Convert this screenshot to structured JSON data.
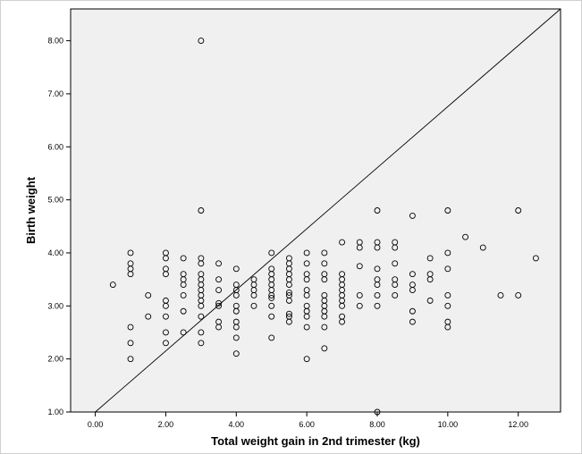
{
  "colors": {
    "plot_background": "#f0f0f0",
    "marker_stroke": "#000000",
    "reference_line": "#000000",
    "frame": "#d0d0d0"
  },
  "chart_data": {
    "type": "scatter",
    "title": "",
    "xlabel": "Total weight gain in 2nd trimester (kg)",
    "ylabel": "Birth weight",
    "xlim": [
      -0.7,
      13.2
    ],
    "ylim": [
      1.0,
      8.6
    ],
    "x_ticks": [
      {
        "value": 0,
        "label": "0.00"
      },
      {
        "value": 2,
        "label": "2.00"
      },
      {
        "value": 4,
        "label": "4.00"
      },
      {
        "value": 6,
        "label": "6.00"
      },
      {
        "value": 8,
        "label": "8.00"
      },
      {
        "value": 10,
        "label": "10.00"
      },
      {
        "value": 12,
        "label": "12.00"
      }
    ],
    "y_ticks": [
      {
        "value": 1,
        "label": "1.00"
      },
      {
        "value": 2,
        "label": "2.00"
      },
      {
        "value": 3,
        "label": "3.00"
      },
      {
        "value": 4,
        "label": "4.00"
      },
      {
        "value": 5,
        "label": "5.00"
      },
      {
        "value": 6,
        "label": "6.00"
      },
      {
        "value": 7,
        "label": "7.00"
      },
      {
        "value": 8,
        "label": "8.00"
      }
    ],
    "grid": false,
    "marker": "open-circle",
    "reference_line": {
      "from": [
        0,
        1.0
      ],
      "to": [
        13.2,
        8.6
      ]
    },
    "points": [
      [
        0.5,
        3.4
      ],
      [
        1,
        2.0
      ],
      [
        1,
        2.3
      ],
      [
        1,
        2.6
      ],
      [
        1,
        3.6
      ],
      [
        1,
        3.7
      ],
      [
        1,
        3.8
      ],
      [
        1,
        4.0
      ],
      [
        1.5,
        2.8
      ],
      [
        1.5,
        3.2
      ],
      [
        2,
        2.3
      ],
      [
        2,
        2.5
      ],
      [
        2,
        2.8
      ],
      [
        2,
        3.0
      ],
      [
        2,
        3.1
      ],
      [
        2,
        3.6
      ],
      [
        2,
        3.7
      ],
      [
        2,
        3.9
      ],
      [
        2,
        4.0
      ],
      [
        2.5,
        2.5
      ],
      [
        2.5,
        2.9
      ],
      [
        2.5,
        3.2
      ],
      [
        2.5,
        3.4
      ],
      [
        2.5,
        3.5
      ],
      [
        2.5,
        3.6
      ],
      [
        2.5,
        3.9
      ],
      [
        3,
        2.3
      ],
      [
        3,
        2.5
      ],
      [
        3,
        2.8
      ],
      [
        3,
        3.0
      ],
      [
        3,
        3.1
      ],
      [
        3,
        3.2
      ],
      [
        3,
        3.3
      ],
      [
        3,
        3.4
      ],
      [
        3,
        3.5
      ],
      [
        3,
        3.6
      ],
      [
        3,
        3.8
      ],
      [
        3,
        3.9
      ],
      [
        3,
        4.8
      ],
      [
        3,
        8.0
      ],
      [
        3.5,
        2.6
      ],
      [
        3.5,
        2.7
      ],
      [
        3.5,
        3.0
      ],
      [
        3.5,
        3.05
      ],
      [
        3.5,
        3.3
      ],
      [
        3.5,
        3.5
      ],
      [
        3.5,
        3.8
      ],
      [
        4,
        2.1
      ],
      [
        4,
        2.4
      ],
      [
        4,
        2.6
      ],
      [
        4,
        2.7
      ],
      [
        4,
        2.9
      ],
      [
        4,
        3.0
      ],
      [
        4,
        3.2
      ],
      [
        4,
        3.3
      ],
      [
        4,
        3.4
      ],
      [
        4,
        3.7
      ],
      [
        4.5,
        3.0
      ],
      [
        4.5,
        3.2
      ],
      [
        4.5,
        3.3
      ],
      [
        4.5,
        3.4
      ],
      [
        4.5,
        3.5
      ],
      [
        5,
        2.4
      ],
      [
        5,
        2.8
      ],
      [
        5,
        3.0
      ],
      [
        5,
        3.15
      ],
      [
        5,
        3.2
      ],
      [
        5,
        3.3
      ],
      [
        5,
        3.4
      ],
      [
        5,
        3.5
      ],
      [
        5,
        3.6
      ],
      [
        5,
        3.7
      ],
      [
        5,
        4.0
      ],
      [
        5.5,
        2.7
      ],
      [
        5.5,
        2.8
      ],
      [
        5.5,
        2.85
      ],
      [
        5.5,
        3.1
      ],
      [
        5.5,
        3.2
      ],
      [
        5.5,
        3.25
      ],
      [
        5.5,
        3.4
      ],
      [
        5.5,
        3.5
      ],
      [
        5.5,
        3.6
      ],
      [
        5.5,
        3.7
      ],
      [
        5.5,
        3.8
      ],
      [
        5.5,
        3.9
      ],
      [
        6,
        2.0
      ],
      [
        6,
        2.6
      ],
      [
        6,
        2.8
      ],
      [
        6,
        2.9
      ],
      [
        6,
        3.0
      ],
      [
        6,
        3.2
      ],
      [
        6,
        3.3
      ],
      [
        6,
        3.5
      ],
      [
        6,
        3.6
      ],
      [
        6,
        3.8
      ],
      [
        6,
        4.0
      ],
      [
        6.5,
        2.2
      ],
      [
        6.5,
        2.6
      ],
      [
        6.5,
        2.8
      ],
      [
        6.5,
        2.9
      ],
      [
        6.5,
        3.0
      ],
      [
        6.5,
        3.1
      ],
      [
        6.5,
        3.2
      ],
      [
        6.5,
        3.5
      ],
      [
        6.5,
        3.6
      ],
      [
        6.5,
        3.8
      ],
      [
        6.5,
        4.0
      ],
      [
        7,
        2.7
      ],
      [
        7,
        2.8
      ],
      [
        7,
        3.0
      ],
      [
        7,
        3.1
      ],
      [
        7,
        3.2
      ],
      [
        7,
        3.3
      ],
      [
        7,
        3.4
      ],
      [
        7,
        3.5
      ],
      [
        7,
        3.6
      ],
      [
        7,
        4.2
      ],
      [
        7.5,
        3.0
      ],
      [
        7.5,
        3.2
      ],
      [
        7.5,
        3.75
      ],
      [
        7.5,
        4.1
      ],
      [
        7.5,
        4.2
      ],
      [
        8,
        1.0
      ],
      [
        8,
        3.0
      ],
      [
        8,
        3.2
      ],
      [
        8,
        3.4
      ],
      [
        8,
        3.5
      ],
      [
        8,
        3.7
      ],
      [
        8,
        4.1
      ],
      [
        8,
        4.2
      ],
      [
        8,
        4.8
      ],
      [
        8.5,
        3.2
      ],
      [
        8.5,
        3.4
      ],
      [
        8.5,
        3.5
      ],
      [
        8.5,
        3.8
      ],
      [
        8.5,
        4.1
      ],
      [
        8.5,
        4.2
      ],
      [
        9,
        2.7
      ],
      [
        9,
        2.9
      ],
      [
        9,
        3.3
      ],
      [
        9,
        3.4
      ],
      [
        9,
        3.6
      ],
      [
        9,
        4.7
      ],
      [
        9.5,
        3.1
      ],
      [
        9.5,
        3.5
      ],
      [
        9.5,
        3.6
      ],
      [
        9.5,
        3.9
      ],
      [
        10,
        2.6
      ],
      [
        10,
        2.7
      ],
      [
        10,
        3.0
      ],
      [
        10,
        3.2
      ],
      [
        10,
        3.7
      ],
      [
        10,
        4.0
      ],
      [
        10,
        4.8
      ],
      [
        10.5,
        4.3
      ],
      [
        11,
        4.1
      ],
      [
        11.5,
        3.2
      ],
      [
        12,
        3.2
      ],
      [
        12,
        4.8
      ],
      [
        12.5,
        3.9
      ]
    ]
  }
}
